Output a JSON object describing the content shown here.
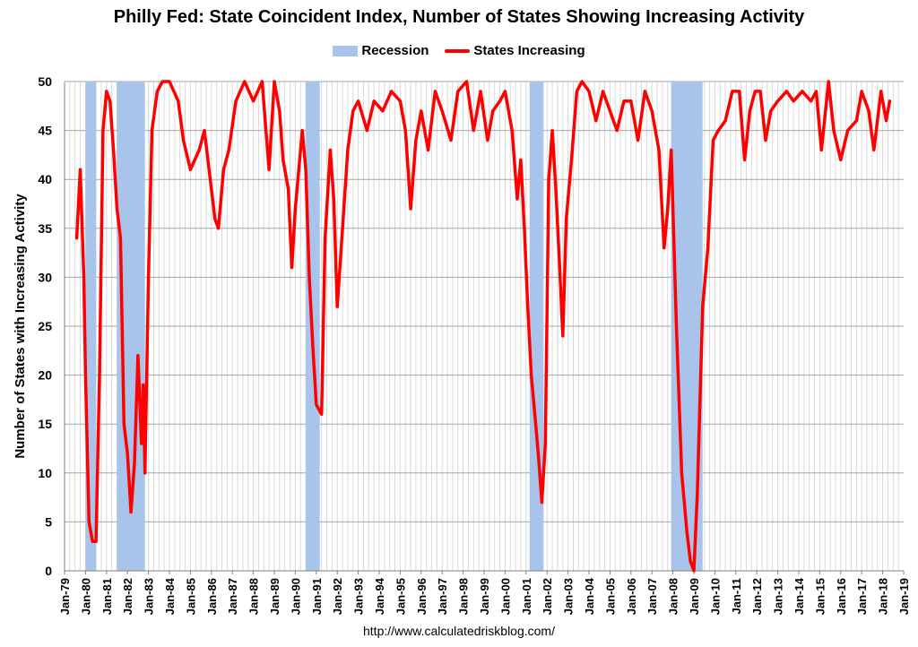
{
  "title": "Philly Fed: State Coincident Index, Number of States Showing Increasing Activity",
  "footer": "http://www.calculatedriskblog.com/",
  "colors": {
    "recession": "#a9c4eb",
    "line": "#ff0000",
    "grid": "#bfbfbf"
  },
  "chart_data": {
    "type": "line",
    "title": "Philly Fed: State Coincident Index, Number of States Showing Increasing Activity",
    "ylabel": "Number of States with Increasing Activity",
    "xlabel": "",
    "ylim": [
      0,
      50
    ],
    "xlim": [
      1979.0,
      2019.0
    ],
    "grid": true,
    "legend": "top-center",
    "y_ticks": [
      "0",
      "5",
      "10",
      "15",
      "20",
      "25",
      "30",
      "35",
      "40",
      "45",
      "50"
    ],
    "x_ticks": [
      "Jan-79",
      "Jan-80",
      "Jan-81",
      "Jan-82",
      "Jan-83",
      "Jan-84",
      "Jan-85",
      "Jan-86",
      "Jan-87",
      "Jan-88",
      "Jan-89",
      "Jan-90",
      "Jan-91",
      "Jan-92",
      "Jan-93",
      "Jan-94",
      "Jan-95",
      "Jan-96",
      "Jan-97",
      "Jan-98",
      "Jan-99",
      "Jan-00",
      "Jan-01",
      "Jan-02",
      "Jan-03",
      "Jan-04",
      "Jan-05",
      "Jan-06",
      "Jan-07",
      "Jan-08",
      "Jan-09",
      "Jan-10",
      "Jan-11",
      "Jan-12",
      "Jan-13",
      "Jan-14",
      "Jan-15",
      "Jan-16",
      "Jan-17",
      "Jan-18",
      "Jan-19"
    ],
    "recession_label": "Recession",
    "recessions": [
      {
        "start": "1980-01",
        "end": "1980-07"
      },
      {
        "start": "1981-07",
        "end": "1982-11"
      },
      {
        "start": "1990-07",
        "end": "1991-03"
      },
      {
        "start": "2001-03",
        "end": "2001-11"
      },
      {
        "start": "2007-12",
        "end": "2009-06"
      }
    ],
    "series": [
      {
        "name": "States Increasing",
        "points": [
          [
            "1979-08",
            34
          ],
          [
            "1979-10",
            41
          ],
          [
            "1979-12",
            30
          ],
          [
            "1980-01",
            20
          ],
          [
            "1980-03",
            5
          ],
          [
            "1980-05",
            3
          ],
          [
            "1980-07",
            3
          ],
          [
            "1980-09",
            20
          ],
          [
            "1980-11",
            45
          ],
          [
            "1981-01",
            49
          ],
          [
            "1981-03",
            48
          ],
          [
            "1981-05",
            43
          ],
          [
            "1981-07",
            37
          ],
          [
            "1981-09",
            34
          ],
          [
            "1981-11",
            15
          ],
          [
            "1982-01",
            12
          ],
          [
            "1982-03",
            6
          ],
          [
            "1982-05",
            11
          ],
          [
            "1982-07",
            22
          ],
          [
            "1982-09",
            13
          ],
          [
            "1982-10",
            19
          ],
          [
            "1982-11",
            10
          ],
          [
            "1983-01",
            30
          ],
          [
            "1983-03",
            45
          ],
          [
            "1983-06",
            49
          ],
          [
            "1983-09",
            50
          ],
          [
            "1984-01",
            50
          ],
          [
            "1984-06",
            48
          ],
          [
            "1984-09",
            44
          ],
          [
            "1985-01",
            41
          ],
          [
            "1985-06",
            43
          ],
          [
            "1985-09",
            45
          ],
          [
            "1986-01",
            39
          ],
          [
            "1986-03",
            36
          ],
          [
            "1986-05",
            35
          ],
          [
            "1986-08",
            41
          ],
          [
            "1986-11",
            43
          ],
          [
            "1987-03",
            48
          ],
          [
            "1987-08",
            50
          ],
          [
            "1988-01",
            48
          ],
          [
            "1988-06",
            50
          ],
          [
            "1988-10",
            41
          ],
          [
            "1989-01",
            50
          ],
          [
            "1989-04",
            47
          ],
          [
            "1989-06",
            42
          ],
          [
            "1989-09",
            39
          ],
          [
            "1989-11",
            31
          ],
          [
            "1990-01",
            37
          ],
          [
            "1990-03",
            41
          ],
          [
            "1990-05",
            45
          ],
          [
            "1990-07",
            41
          ],
          [
            "1990-09",
            30
          ],
          [
            "1990-11",
            23
          ],
          [
            "1991-01",
            17
          ],
          [
            "1991-04",
            16
          ],
          [
            "1991-06",
            34
          ],
          [
            "1991-09",
            43
          ],
          [
            "1991-11",
            38
          ],
          [
            "1992-01",
            27
          ],
          [
            "1992-04",
            35
          ],
          [
            "1992-07",
            43
          ],
          [
            "1992-10",
            47
          ],
          [
            "1993-01",
            48
          ],
          [
            "1993-06",
            45
          ],
          [
            "1993-10",
            48
          ],
          [
            "1994-03",
            47
          ],
          [
            "1994-08",
            49
          ],
          [
            "1995-01",
            48
          ],
          [
            "1995-04",
            45
          ],
          [
            "1995-07",
            37
          ],
          [
            "1995-10",
            44
          ],
          [
            "1996-01",
            47
          ],
          [
            "1996-05",
            43
          ],
          [
            "1996-09",
            49
          ],
          [
            "1997-01",
            47
          ],
          [
            "1997-06",
            44
          ],
          [
            "1997-10",
            49
          ],
          [
            "1998-03",
            50
          ],
          [
            "1998-07",
            45
          ],
          [
            "1998-11",
            49
          ],
          [
            "1999-03",
            44
          ],
          [
            "1999-06",
            47
          ],
          [
            "1999-10",
            48
          ],
          [
            "2000-01",
            49
          ],
          [
            "2000-05",
            45
          ],
          [
            "2000-08",
            38
          ],
          [
            "2000-10",
            42
          ],
          [
            "2000-12",
            35
          ],
          [
            "2001-02",
            27
          ],
          [
            "2001-04",
            20
          ],
          [
            "2001-06",
            16
          ],
          [
            "2001-08",
            12
          ],
          [
            "2001-10",
            7
          ],
          [
            "2001-12",
            13
          ],
          [
            "2002-02",
            40
          ],
          [
            "2002-04",
            45
          ],
          [
            "2002-06",
            39
          ],
          [
            "2002-08",
            32
          ],
          [
            "2002-10",
            24
          ],
          [
            "2002-12",
            36
          ],
          [
            "2003-03",
            42
          ],
          [
            "2003-06",
            49
          ],
          [
            "2003-09",
            50
          ],
          [
            "2004-01",
            49
          ],
          [
            "2004-05",
            46
          ],
          [
            "2004-09",
            49
          ],
          [
            "2005-01",
            47
          ],
          [
            "2005-05",
            45
          ],
          [
            "2005-09",
            48
          ],
          [
            "2006-01",
            48
          ],
          [
            "2006-05",
            44
          ],
          [
            "2006-09",
            49
          ],
          [
            "2007-01",
            47
          ],
          [
            "2007-05",
            43
          ],
          [
            "2007-08",
            33
          ],
          [
            "2007-10",
            37
          ],
          [
            "2007-12",
            43
          ],
          [
            "2008-03",
            25
          ],
          [
            "2008-06",
            10
          ],
          [
            "2008-09",
            4
          ],
          [
            "2008-11",
            1
          ],
          [
            "2009-01",
            0
          ],
          [
            "2009-03",
            8
          ],
          [
            "2009-06",
            27
          ],
          [
            "2009-09",
            33
          ],
          [
            "2009-12",
            44
          ],
          [
            "2010-03",
            45
          ],
          [
            "2010-07",
            46
          ],
          [
            "2010-11",
            49
          ],
          [
            "2011-03",
            49
          ],
          [
            "2011-06",
            42
          ],
          [
            "2011-09",
            47
          ],
          [
            "2011-12",
            49
          ],
          [
            "2012-03",
            49
          ],
          [
            "2012-06",
            44
          ],
          [
            "2012-09",
            47
          ],
          [
            "2013-01",
            48
          ],
          [
            "2013-06",
            49
          ],
          [
            "2013-10",
            48
          ],
          [
            "2014-03",
            49
          ],
          [
            "2014-08",
            48
          ],
          [
            "2014-11",
            49
          ],
          [
            "2015-02",
            43
          ],
          [
            "2015-06",
            50
          ],
          [
            "2015-09",
            45
          ],
          [
            "2016-01",
            42
          ],
          [
            "2016-05",
            45
          ],
          [
            "2016-10",
            46
          ],
          [
            "2017-01",
            49
          ],
          [
            "2017-05",
            47
          ],
          [
            "2017-08",
            43
          ],
          [
            "2017-12",
            49
          ],
          [
            "2018-03",
            46
          ],
          [
            "2018-05",
            48
          ]
        ]
      }
    ]
  }
}
